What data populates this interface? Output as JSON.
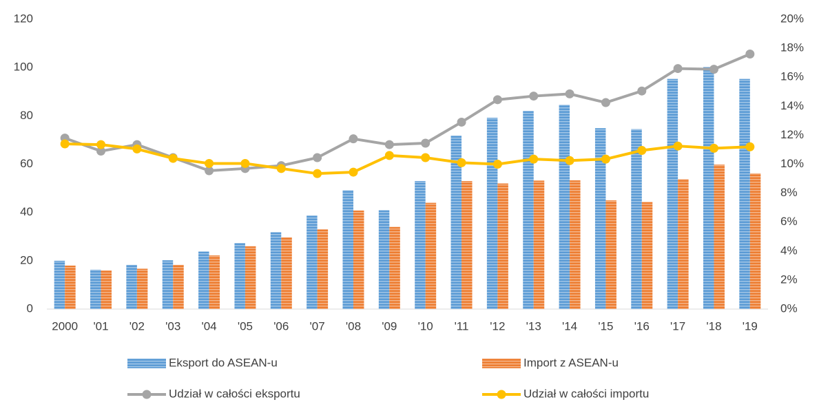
{
  "chart_data": {
    "type": "bar-line",
    "categories": [
      "2000",
      "'01",
      "'02",
      "'03",
      "'04",
      "'05",
      "'06",
      "'07",
      "'08",
      "'09",
      "'10",
      "'11",
      "'12",
      "'13",
      "'14",
      "'15",
      "'16",
      "'17",
      "'18",
      "'19"
    ],
    "series": [
      {
        "name": "Eksport do ASEAN-u",
        "type": "bar",
        "color": "#5b9bd5",
        "values": [
          20,
          16.3,
          18.3,
          20.2,
          23.8,
          27.3,
          31.8,
          38.7,
          49.2,
          40.9,
          53,
          71.8,
          79.2,
          82,
          84.6,
          74.9,
          74.5,
          95.3,
          100.2,
          95.3
        ]
      },
      {
        "name": "Import z ASEAN-u",
        "type": "bar",
        "color": "#ed7d31",
        "values": [
          18,
          16,
          16.7,
          18.3,
          22.2,
          26,
          29.7,
          33,
          40.8,
          34,
          44,
          53,
          52,
          53.2,
          53.3,
          45,
          44.3,
          53.8,
          59.8,
          56.2
        ]
      },
      {
        "name": "Udział w całości eksportu",
        "type": "line",
        "axis": "y2",
        "color": "#a5a5a5",
        "values": [
          11.8,
          10.9,
          11.35,
          10.45,
          9.55,
          9.7,
          9.9,
          10.45,
          11.75,
          11.35,
          11.45,
          12.9,
          14.45,
          14.7,
          14.85,
          14.25,
          15.05,
          16.6,
          16.55,
          17.6
        ]
      },
      {
        "name": "Udział w całości importu",
        "type": "line",
        "axis": "y2",
        "color": "#ffc000",
        "values": [
          11.4,
          11.35,
          11.05,
          10.4,
          10.05,
          10.05,
          9.7,
          9.35,
          9.45,
          10.6,
          10.45,
          10.1,
          10.0,
          10.35,
          10.25,
          10.35,
          10.95,
          11.25,
          11.1,
          11.2
        ]
      }
    ],
    "ylim": [
      0,
      120
    ],
    "yticks": [
      0,
      20,
      40,
      60,
      80,
      100,
      120
    ],
    "y2lim": [
      0,
      20
    ],
    "y2ticks": [
      {
        "value": 0,
        "label": "0%"
      },
      {
        "value": 2,
        "label": "2%"
      },
      {
        "value": 4,
        "label": "4%"
      },
      {
        "value": 6,
        "label": "6%"
      },
      {
        "value": 8,
        "label": "8%"
      },
      {
        "value": 10,
        "label": "10%"
      },
      {
        "value": 12,
        "label": "12%"
      },
      {
        "value": 14,
        "label": "14%"
      },
      {
        "value": 16,
        "label": "16%"
      },
      {
        "value": 18,
        "label": "18%"
      },
      {
        "value": 20,
        "label": "20%"
      }
    ],
    "grid": false
  }
}
